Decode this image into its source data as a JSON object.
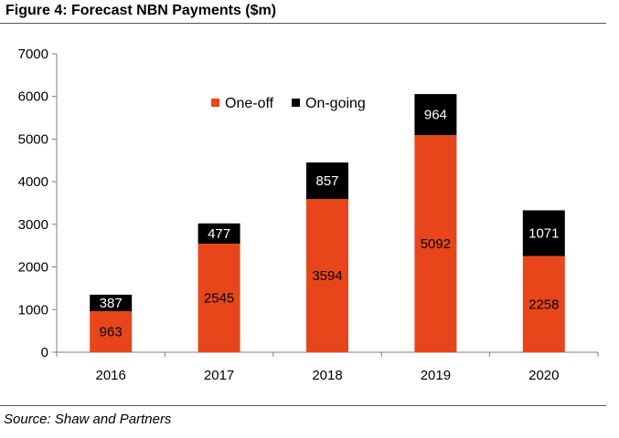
{
  "title": "Figure 4: Forecast NBN Payments ($m)",
  "source": "Source: Shaw and Partners",
  "colors": {
    "one_off": "#E8461A",
    "on_going": "#000000"
  },
  "chart_data": {
    "type": "bar",
    "stacked": true,
    "categories": [
      "2016",
      "2017",
      "2018",
      "2019",
      "2020"
    ],
    "series": [
      {
        "name": "One-off",
        "values": [
          963,
          2545,
          3594,
          5092,
          2258
        ]
      },
      {
        "name": "On-going",
        "values": [
          387,
          477,
          857,
          964,
          1071
        ]
      }
    ],
    "ylim": [
      0,
      7000
    ],
    "yticks": [
      0,
      1000,
      2000,
      3000,
      4000,
      5000,
      6000,
      7000
    ],
    "ytick_labels": [
      "0",
      "1000",
      "2000",
      "3000",
      "4000",
      "5000",
      "6000",
      "7000"
    ],
    "legend": {
      "placement": "top-center",
      "entries": [
        "One-off",
        "On-going"
      ]
    },
    "grid": false
  }
}
